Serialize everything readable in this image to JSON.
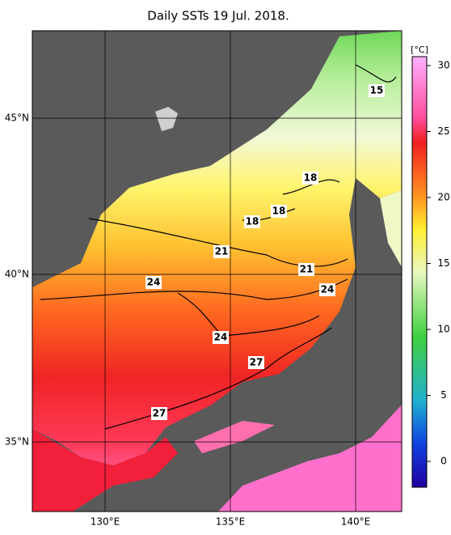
{
  "header": {
    "title": "Daily SSTs 19 Jul. 2018."
  },
  "axes": {
    "lon_labels": [
      "130°E",
      "135°E",
      "140°E"
    ],
    "lat_labels": [
      "35°N",
      "40°N",
      "45°N"
    ]
  },
  "colorbar": {
    "unit": "[°C]",
    "ticks": [
      0,
      5,
      10,
      15,
      20,
      25,
      30
    ]
  },
  "contour_labels": [
    15,
    18,
    18,
    18,
    21,
    21,
    24,
    24,
    24,
    27,
    27
  ]
}
